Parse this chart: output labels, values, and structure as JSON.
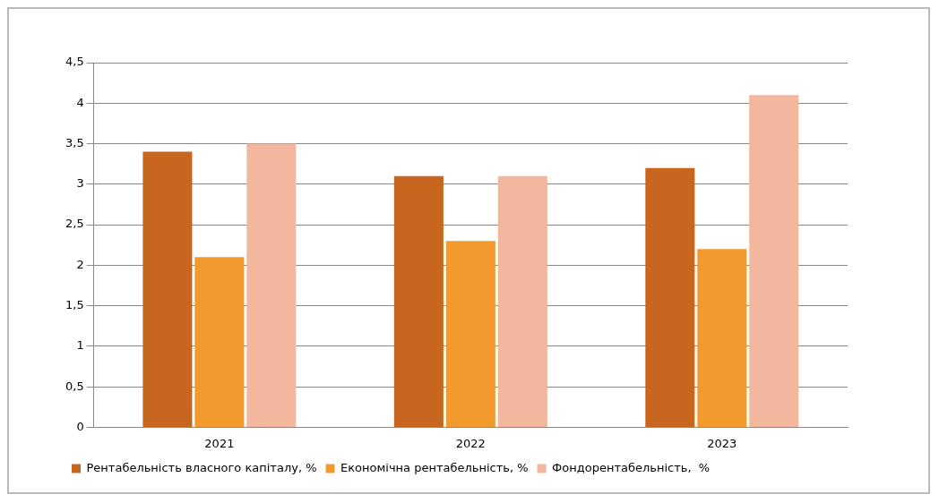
{
  "chart_data": {
    "type": "bar",
    "categories": [
      "2021",
      "2022",
      "2023"
    ],
    "series": [
      {
        "name": "Рентабельність власного капіталу, %",
        "color": "#c8661f",
        "values": [
          3.4,
          3.1,
          3.2
        ]
      },
      {
        "name": "Економічна рентабельність, %",
        "color": "#f39a2e",
        "values": [
          2.1,
          2.3,
          2.2
        ]
      },
      {
        "name": "Фондорентабельність,  %",
        "color": "#f2b79c",
        "values": [
          3.5,
          3.1,
          4.1
        ]
      }
    ],
    "ylim": [
      0,
      4.5
    ],
    "yticks": [
      0,
      {
        "value": 0.5,
        "label": "0,5"
      },
      1,
      {
        "value": 1.5,
        "label": "1,5"
      },
      2,
      {
        "value": 2.5,
        "label": "2,5"
      },
      3,
      {
        "value": 3.5,
        "label": "3,5"
      },
      4,
      {
        "value": 4.5,
        "label": "4,5"
      }
    ],
    "grid": "y",
    "legend": "bottom"
  }
}
